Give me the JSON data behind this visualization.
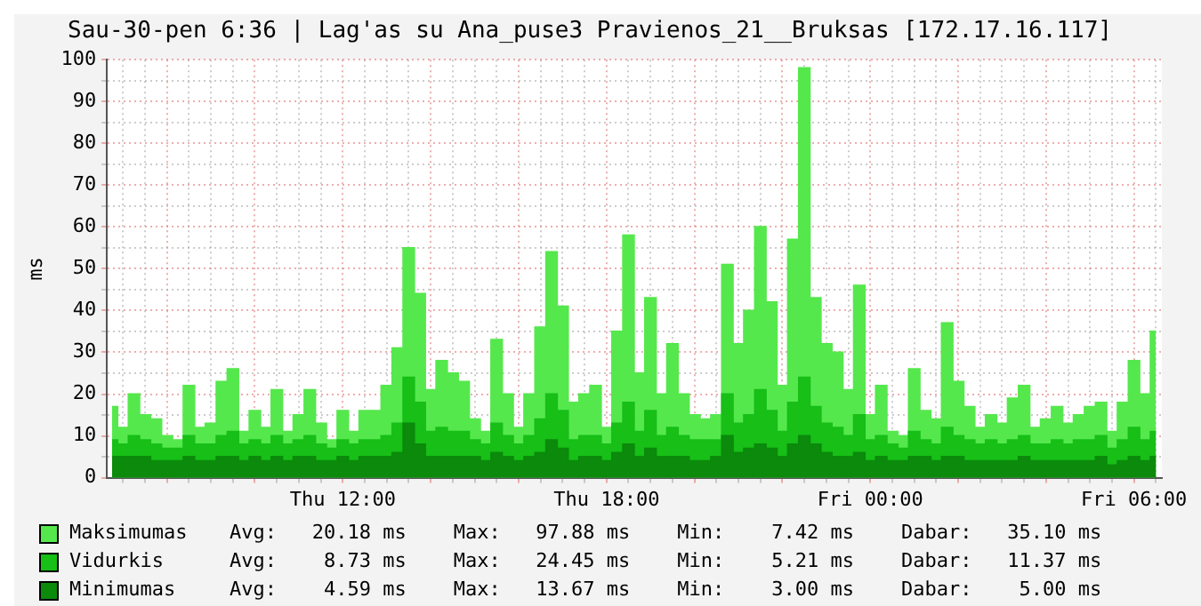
{
  "chart_data": {
    "type": "area",
    "title": "Sau-30-pen 6:36 | Lag'as su Ana_puse3 Pravienos_21__Bruksas [172.17.16.117]",
    "ylabel": "ms",
    "x": [
      "--01-29T06:45",
      "--01-29T07:00",
      "--01-29T07:15",
      "--01-29T07:30",
      "--01-29T07:45",
      "--01-29T08:00",
      "--01-29T08:15",
      "--01-29T08:30",
      "--01-29T08:45",
      "--01-29T09:00",
      "--01-29T09:15",
      "--01-29T09:30",
      "--01-29T09:45",
      "--01-29T10:00",
      "--01-29T10:15",
      "--01-29T10:30",
      "--01-29T10:45",
      "--01-29T11:00",
      "--01-29T11:15",
      "--01-29T11:30",
      "--01-29T11:45",
      "--01-29T12:00",
      "--01-29T12:15",
      "--01-29T12:30",
      "--01-29T12:45",
      "--01-29T13:00",
      "--01-29T13:15",
      "--01-29T13:30",
      "--01-29T13:45",
      "--01-29T14:00",
      "--01-29T14:15",
      "--01-29T14:30",
      "--01-29T14:45",
      "--01-29T15:00",
      "--01-29T15:15",
      "--01-29T15:30",
      "--01-29T15:45",
      "--01-29T16:00",
      "--01-29T16:15",
      "--01-29T16:30",
      "--01-29T16:45",
      "--01-29T17:00",
      "--01-29T17:15",
      "--01-29T17:30",
      "--01-29T17:45",
      "--01-29T18:00",
      "--01-29T18:15",
      "--01-29T18:30",
      "--01-29T18:45",
      "--01-29T19:00",
      "--01-29T19:15",
      "--01-29T19:30",
      "--01-29T19:45",
      "--01-29T20:00",
      "--01-29T20:15",
      "--01-29T20:30",
      "--01-29T20:45",
      "--01-29T21:00",
      "--01-29T21:15",
      "--01-29T21:30",
      "--01-29T21:45",
      "--01-29T22:00",
      "--01-29T22:15",
      "--01-29T22:30",
      "--01-29T22:45",
      "--01-29T23:00",
      "--01-29T23:15",
      "--01-29T23:30",
      "--01-29T23:45",
      "--01-30T00:00",
      "--01-30T00:15",
      "--01-30T00:30",
      "--01-30T00:45",
      "--01-30T01:00",
      "--01-30T01:15",
      "--01-30T01:30",
      "--01-30T01:45",
      "--01-30T02:00",
      "--01-30T02:15",
      "--01-30T02:30",
      "--01-30T02:45",
      "--01-30T03:00",
      "--01-30T03:15",
      "--01-30T03:30",
      "--01-30T03:45",
      "--01-30T04:00",
      "--01-30T04:15",
      "--01-30T04:30",
      "--01-30T04:45",
      "--01-30T05:00",
      "--01-30T05:15",
      "--01-30T05:30",
      "--01-30T05:45",
      "--01-30T06:00",
      "--01-30T06:15",
      "--01-30T06:30"
    ],
    "series": [
      {
        "name": "Maksimumas",
        "color": "#55e84d",
        "values": [
          17,
          12,
          20,
          15,
          14,
          10,
          9,
          22,
          12,
          13,
          23,
          26,
          11,
          16,
          12,
          21,
          11,
          15,
          21,
          13,
          9,
          16,
          11,
          16,
          16,
          22,
          31,
          55,
          44,
          21,
          28,
          25,
          23,
          14,
          11,
          33,
          20,
          12,
          20,
          36,
          54,
          41,
          18,
          20,
          22,
          12,
          35,
          58,
          25,
          43,
          20,
          32,
          20,
          15,
          14,
          15,
          51,
          32,
          40,
          60,
          42,
          22,
          57,
          98,
          43,
          32,
          30,
          21,
          46,
          15,
          22,
          11,
          10,
          26,
          16,
          14,
          37,
          23,
          17,
          12,
          15,
          13,
          19,
          22,
          12,
          14,
          17,
          13,
          15,
          17,
          18,
          11,
          18,
          28,
          20,
          35
        ]
      },
      {
        "name": "Vidurkis",
        "color": "#17bf17",
        "values": [
          9,
          8,
          10,
          9,
          8,
          7,
          7,
          10,
          8,
          8,
          10,
          11,
          8,
          9,
          8,
          10,
          8,
          9,
          10,
          8,
          7,
          9,
          8,
          9,
          9,
          10,
          13,
          24,
          18,
          11,
          12,
          11,
          11,
          9,
          8,
          13,
          10,
          8,
          10,
          14,
          20,
          16,
          9,
          10,
          10,
          8,
          13,
          18,
          11,
          16,
          10,
          12,
          10,
          9,
          9,
          9,
          20,
          13,
          15,
          21,
          16,
          11,
          18,
          24,
          17,
          13,
          12,
          10,
          15,
          9,
          10,
          8,
          7,
          11,
          9,
          8,
          12,
          10,
          9,
          8,
          9,
          8,
          9,
          10,
          8,
          8,
          9,
          8,
          9,
          9,
          10,
          7,
          9,
          12,
          9,
          11
        ]
      },
      {
        "name": "Minimumas",
        "color": "#0b8a0b",
        "values": [
          5,
          5,
          5,
          5,
          4,
          4,
          4,
          5,
          4,
          4,
          5,
          5,
          4,
          5,
          4,
          5,
          4,
          5,
          5,
          4,
          4,
          5,
          4,
          5,
          5,
          5,
          6,
          13,
          8,
          5,
          5,
          5,
          5,
          5,
          4,
          6,
          5,
          4,
          5,
          6,
          9,
          7,
          4,
          5,
          5,
          4,
          6,
          8,
          5,
          7,
          5,
          5,
          5,
          4,
          4,
          5,
          10,
          6,
          7,
          8,
          7,
          5,
          8,
          10,
          8,
          6,
          5,
          5,
          6,
          4,
          5,
          4,
          4,
          5,
          5,
          4,
          5,
          5,
          4,
          4,
          4,
          4,
          4,
          5,
          4,
          4,
          4,
          4,
          4,
          4,
          5,
          3,
          4,
          5,
          4,
          5
        ]
      }
    ],
    "xlim": [
      "--01-29T06:38",
      "--01-30T06:38"
    ],
    "xticks": [
      {
        "value": "--01-29T07:00",
        "label": null
      },
      {
        "value": "--01-29T07:30",
        "label": null
      },
      {
        "value": "--01-29T08:00",
        "label": null
      },
      {
        "value": "--01-29T08:30",
        "label": null
      },
      {
        "value": "--01-29T09:00",
        "label": null
      },
      {
        "value": "--01-29T09:30",
        "label": null
      },
      {
        "value": "--01-29T10:00",
        "label": null
      },
      {
        "value": "--01-29T10:30",
        "label": null
      },
      {
        "value": "--01-29T11:00",
        "label": null
      },
      {
        "value": "--01-29T11:30",
        "label": null
      },
      {
        "value": "--01-29T12:00",
        "label": "Thu 12:00"
      },
      {
        "value": "--01-29T12:30",
        "label": null
      },
      {
        "value": "--01-29T13:00",
        "label": null
      },
      {
        "value": "--01-29T13:30",
        "label": null
      },
      {
        "value": "--01-29T14:00",
        "label": null
      },
      {
        "value": "--01-29T14:30",
        "label": null
      },
      {
        "value": "--01-29T15:00",
        "label": null
      },
      {
        "value": "--01-29T15:30",
        "label": null
      },
      {
        "value": "--01-29T16:00",
        "label": null
      },
      {
        "value": "--01-29T16:30",
        "label": null
      },
      {
        "value": "--01-29T17:00",
        "label": null
      },
      {
        "value": "--01-29T17:30",
        "label": null
      },
      {
        "value": "--01-29T18:00",
        "label": "Thu 18:00"
      },
      {
        "value": "--01-29T18:30",
        "label": null
      },
      {
        "value": "--01-29T19:00",
        "label": null
      },
      {
        "value": "--01-29T19:30",
        "label": null
      },
      {
        "value": "--01-29T20:00",
        "label": null
      },
      {
        "value": "--01-29T20:30",
        "label": null
      },
      {
        "value": "--01-29T21:00",
        "label": null
      },
      {
        "value": "--01-29T21:30",
        "label": null
      },
      {
        "value": "--01-29T22:00",
        "label": null
      },
      {
        "value": "--01-29T22:30",
        "label": null
      },
      {
        "value": "--01-29T23:00",
        "label": null
      },
      {
        "value": "--01-29T23:30",
        "label": null
      },
      {
        "value": "--01-30T00:00",
        "label": "Fri 00:00"
      },
      {
        "value": "--01-30T00:30",
        "label": null
      },
      {
        "value": "--01-30T01:00",
        "label": null
      },
      {
        "value": "--01-30T01:30",
        "label": null
      },
      {
        "value": "--01-30T02:00",
        "label": null
      },
      {
        "value": "--01-30T02:30",
        "label": null
      },
      {
        "value": "--01-30T03:00",
        "label": null
      },
      {
        "value": "--01-30T03:30",
        "label": null
      },
      {
        "value": "--01-30T04:00",
        "label": null
      },
      {
        "value": "--01-30T04:30",
        "label": null
      },
      {
        "value": "--01-30T05:00",
        "label": null
      },
      {
        "value": "--01-30T05:30",
        "label": null
      },
      {
        "value": "--01-30T06:00",
        "label": "Fri 06:00"
      },
      {
        "value": "--01-30T06:30",
        "label": null
      }
    ],
    "ylim": [
      0,
      100
    ],
    "yticks": [
      0,
      {
        "value": 5,
        "label": null
      },
      10,
      {
        "value": 15,
        "label": null
      },
      20,
      {
        "value": 25,
        "label": null
      },
      30,
      {
        "value": 35,
        "label": null
      },
      40,
      {
        "value": 45,
        "label": null
      },
      50,
      {
        "value": 55,
        "label": null
      },
      60,
      {
        "value": 65,
        "label": null
      },
      70,
      {
        "value": 75,
        "label": null
      },
      80,
      {
        "value": 85,
        "label": null
      },
      90,
      {
        "value": 95,
        "label": null
      },
      100
    ],
    "grid": true,
    "legend": "bottom",
    "marker": "none",
    "annotations": [
      "Avg:   20.18 ms    Max:   97.88 ms    Min:    7.42 ms    Dabar:   35.10 ms",
      "Avg:    8.73 ms    Max:   24.45 ms    Min:    5.21 ms    Dabar:   11.37 ms",
      "Avg:    4.59 ms    Max:   13.67 ms    Min:    3.00 ms    Dabar:    5.00 ms"
    ]
  }
}
